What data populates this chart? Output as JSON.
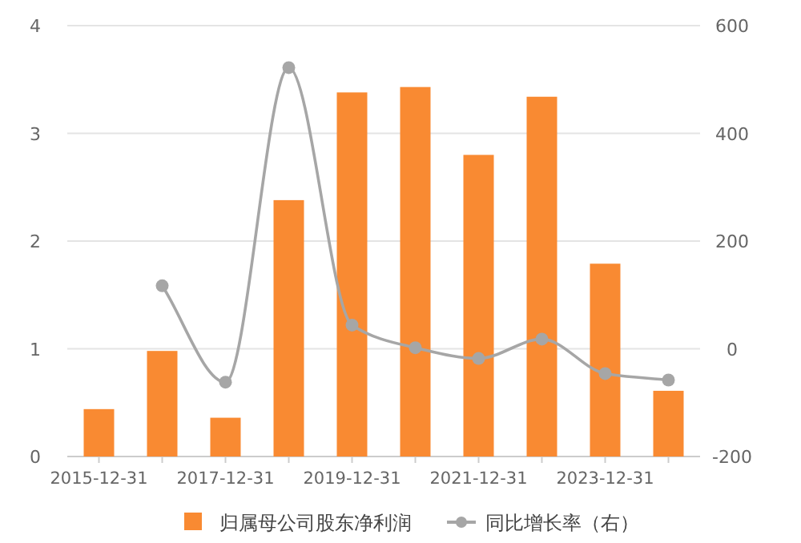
{
  "chart_data": {
    "type": "bar",
    "categories": [
      "2015-12-31",
      null,
      "2017-12-31",
      null,
      "2019-12-31",
      null,
      "2021-12-31",
      null,
      "2023-12-31",
      null
    ],
    "series": [
      {
        "name": "归属母公司股东净利润",
        "color": "#f98a32",
        "values": [
          0.44,
          0.98,
          0.36,
          2.38,
          3.38,
          3.43,
          2.8,
          3.34,
          1.79,
          0.61
        ]
      },
      {
        "name": "同比增长率（右）",
        "type": "line",
        "axis": "y2",
        "color": "#a6a6a6",
        "marker": "circle",
        "values": [
          null,
          117,
          -62,
          522,
          44,
          2,
          -18,
          18,
          -46,
          -58
        ]
      }
    ],
    "ylim": [
      0,
      4
    ],
    "yticks": [
      0,
      1,
      2,
      3,
      4
    ],
    "y2lim": [
      -200,
      600
    ],
    "y2ticks": [
      -200,
      0,
      200,
      400,
      600
    ],
    "grid": "y",
    "legend": "bottom"
  }
}
